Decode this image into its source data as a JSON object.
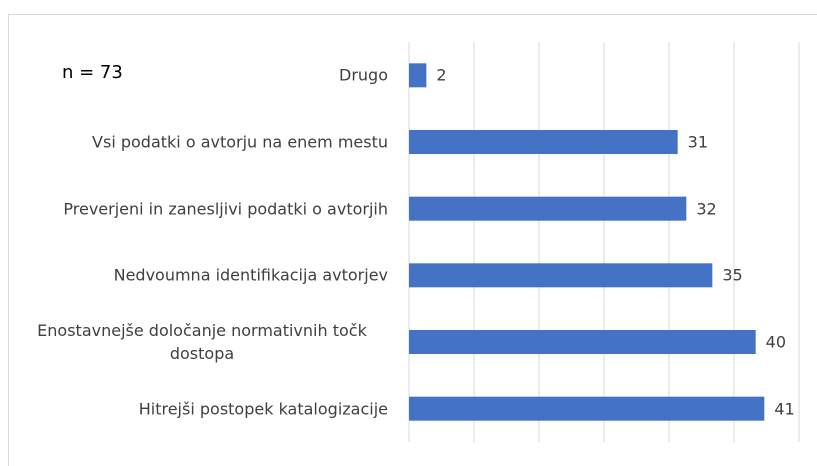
{
  "chart_data": {
    "type": "bar",
    "orientation": "horizontal",
    "annotation": "n = 73",
    "categories": [
      "Drugo",
      "Vsi podatki o avtorju na enem mestu",
      "Preverjeni in zanesljivi podatki o avtorjih",
      "Nedvoumna identifikacija avtorjev",
      "Enostavnejše določanje normativnih točk dostopa",
      "Hitrejši postopek katalogizacije"
    ],
    "values": [
      2,
      31,
      32,
      35,
      40,
      41
    ],
    "color": "#4472c4",
    "xlim": [
      0,
      45
    ],
    "xticks": [
      0,
      7.5,
      15,
      22.5,
      30,
      37.5,
      45
    ],
    "grid": true
  }
}
